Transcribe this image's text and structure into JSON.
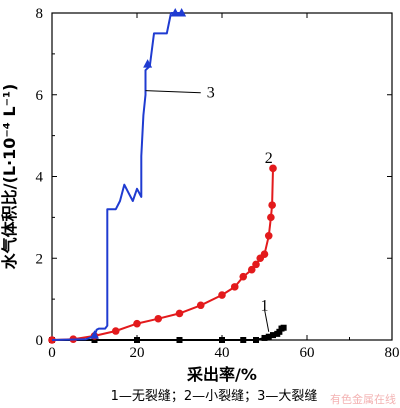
{
  "chart_data": {
    "type": "line",
    "xlabel": "采出率/%",
    "ylabel": "水气体积比/(L·10⁻⁴ L⁻¹)",
    "xlim": [
      0,
      80
    ],
    "ylim": [
      0,
      8
    ],
    "xticks": [
      0,
      20,
      40,
      60,
      80
    ],
    "yticks": [
      0,
      2,
      4,
      6,
      8
    ],
    "grid": false,
    "caption": "1—无裂缝；2—小裂缝；3—大裂缝",
    "watermark": "有色金属在线",
    "series": [
      {
        "name": "1",
        "color": "#000000",
        "marker": "square",
        "points": [
          [
            0,
            0
          ],
          [
            10,
            0
          ],
          [
            20,
            0
          ],
          [
            30,
            0
          ],
          [
            40,
            0
          ],
          [
            45,
            0
          ],
          [
            48,
            0
          ],
          [
            50,
            0.05
          ],
          [
            51,
            0.08
          ],
          [
            52,
            0.12
          ],
          [
            53,
            0.15
          ],
          [
            53.5,
            0.2
          ],
          [
            54,
            0.28
          ],
          [
            54.5,
            0.3
          ]
        ]
      },
      {
        "name": "2",
        "color": "#e31a1c",
        "marker": "circle",
        "points": [
          [
            0,
            0
          ],
          [
            5,
            0.02
          ],
          [
            10,
            0.1
          ],
          [
            15,
            0.22
          ],
          [
            20,
            0.4
          ],
          [
            25,
            0.52
          ],
          [
            30,
            0.65
          ],
          [
            35,
            0.85
          ],
          [
            40,
            1.1
          ],
          [
            43,
            1.3
          ],
          [
            45,
            1.55
          ],
          [
            47,
            1.72
          ],
          [
            48,
            1.85
          ],
          [
            49,
            2.0
          ],
          [
            50,
            2.1
          ],
          [
            51,
            2.55
          ],
          [
            51.5,
            3.0
          ],
          [
            51.8,
            3.3
          ],
          [
            52,
            4.2
          ]
        ]
      },
      {
        "name": "3",
        "color": "#1f3bd1",
        "marker": "triangle",
        "points": [
          [
            0,
            0
          ],
          [
            8,
            0.02
          ],
          [
            10,
            0.1
          ],
          [
            10.5,
            0.25
          ],
          [
            11,
            0.28
          ],
          [
            12.5,
            0.28
          ],
          [
            13,
            0.35
          ],
          [
            13,
            3.2
          ],
          [
            15,
            3.2
          ],
          [
            16,
            3.4
          ],
          [
            17,
            3.8
          ],
          [
            18,
            3.6
          ],
          [
            19,
            3.4
          ],
          [
            20,
            3.7
          ],
          [
            21,
            3.5
          ],
          [
            21,
            4.5
          ],
          [
            21.5,
            5.5
          ],
          [
            22,
            6.0
          ],
          [
            22,
            6.6
          ],
          [
            23,
            6.7
          ],
          [
            24,
            7.5
          ],
          [
            27,
            7.5
          ],
          [
            28,
            8.0
          ],
          [
            30,
            8.0
          ],
          [
            31,
            8.0
          ]
        ],
        "marker_points": [
          [
            10,
            0.12
          ],
          [
            22.5,
            6.75
          ],
          [
            29,
            8.0
          ],
          [
            30.5,
            8.0
          ]
        ]
      }
    ],
    "annotations": [
      {
        "text": "3",
        "series": "3",
        "from": [
          22,
          6.1
        ],
        "to": [
          35,
          6.05
        ]
      },
      {
        "text": "2",
        "series": "2",
        "at": [
          51,
          4.45
        ]
      },
      {
        "text": "1",
        "series": "1",
        "from": [
          51,
          0.2
        ],
        "to": [
          50,
          0.75
        ],
        "at": [
          50,
          0.85
        ]
      }
    ]
  }
}
